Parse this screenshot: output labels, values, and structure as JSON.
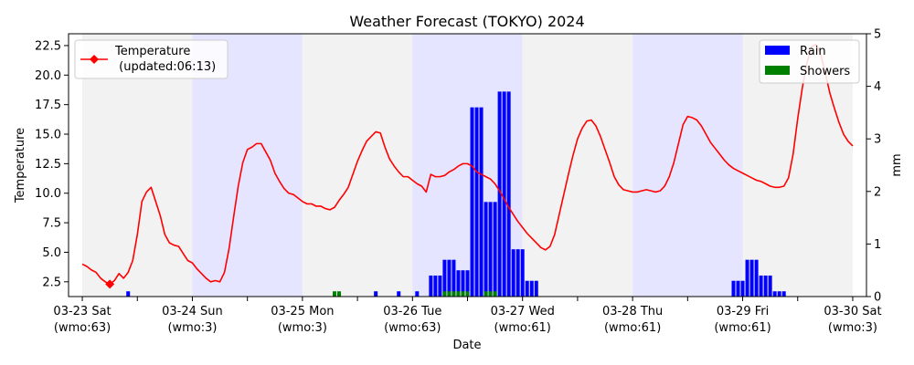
{
  "chart_data": {
    "type": "bar+line",
    "title": "Weather Forecast (TOKYO) 2024",
    "xlabel": "Date",
    "ylabel_left": "Temperature",
    "ylabel_right": "mm",
    "ylim_left": [
      1.25,
      23.5
    ],
    "ylim_right": [
      0,
      5
    ],
    "yticks_left": [
      "2.5",
      "5.0",
      "7.5",
      "10.0",
      "12.5",
      "15.0",
      "17.5",
      "20.0",
      "22.5"
    ],
    "yticks_right": [
      "0",
      "1",
      "2",
      "3",
      "4",
      "5"
    ],
    "xlim_hours": [
      -3,
      171
    ],
    "x_tick_labels": [
      {
        "hour": 0,
        "date": "03-23 Sat",
        "wmo": "(wmo:63)"
      },
      {
        "hour": 24,
        "date": "03-24 Sun",
        "wmo": "(wmo:3)"
      },
      {
        "hour": 48,
        "date": "03-25 Mon",
        "wmo": "(wmo:3)"
      },
      {
        "hour": 72,
        "date": "03-26 Tue",
        "wmo": "(wmo:63)"
      },
      {
        "hour": 96,
        "date": "03-27 Wed",
        "wmo": "(wmo:61)"
      },
      {
        "hour": 120,
        "date": "03-28 Thu",
        "wmo": "(wmo:61)"
      },
      {
        "hour": 144,
        "date": "03-29 Fri",
        "wmo": "(wmo:61)"
      },
      {
        "hour": 168,
        "date": "03-30 Sat",
        "wmo": "(wmo:3)"
      }
    ],
    "minor_tick_hours": [
      12,
      36,
      60,
      84,
      108,
      132,
      156
    ],
    "day_bands": [
      {
        "start": 0,
        "end": 24,
        "color": "#f2f2f2"
      },
      {
        "start": 24,
        "end": 48,
        "color": "#e5e5ff"
      },
      {
        "start": 48,
        "end": 72,
        "color": "#f2f2f2"
      },
      {
        "start": 72,
        "end": 96,
        "color": "#e5e5ff"
      },
      {
        "start": 96,
        "end": 120,
        "color": "#f2f2f2"
      },
      {
        "start": 120,
        "end": 144,
        "color": "#e5e5ff"
      },
      {
        "start": 144,
        "end": 168,
        "color": "#f2f2f2"
      }
    ],
    "temperature": {
      "name": "Temperature\n (updated:06:13)",
      "color": "#ff0000",
      "marker_hour": 6,
      "marker_value": 2.3,
      "points": [
        [
          0,
          4.0
        ],
        [
          1,
          3.8
        ],
        [
          2,
          3.5
        ],
        [
          3,
          3.3
        ],
        [
          4,
          2.8
        ],
        [
          5,
          2.5
        ],
        [
          6,
          2.3
        ],
        [
          7,
          2.6
        ],
        [
          8,
          3.2
        ],
        [
          9,
          2.8
        ],
        [
          10,
          3.3
        ],
        [
          11,
          4.3
        ],
        [
          12,
          6.5
        ],
        [
          13,
          9.3
        ],
        [
          14,
          10.1
        ],
        [
          15,
          10.5
        ],
        [
          16,
          9.3
        ],
        [
          17,
          8.1
        ],
        [
          18,
          6.5
        ],
        [
          19,
          5.8
        ],
        [
          20,
          5.6
        ],
        [
          21,
          5.5
        ],
        [
          22,
          4.9
        ],
        [
          23,
          4.3
        ],
        [
          24,
          4.1
        ],
        [
          25,
          3.6
        ],
        [
          26,
          3.2
        ],
        [
          27,
          2.8
        ],
        [
          28,
          2.5
        ],
        [
          29,
          2.6
        ],
        [
          30,
          2.5
        ],
        [
          31,
          3.3
        ],
        [
          32,
          5.3
        ],
        [
          33,
          8.0
        ],
        [
          34,
          10.6
        ],
        [
          35,
          12.6
        ],
        [
          36,
          13.7
        ],
        [
          37,
          13.9
        ],
        [
          38,
          14.2
        ],
        [
          39,
          14.2
        ],
        [
          40,
          13.5
        ],
        [
          41,
          12.8
        ],
        [
          42,
          11.7
        ],
        [
          43,
          11.0
        ],
        [
          44,
          10.4
        ],
        [
          45,
          10.0
        ],
        [
          46,
          9.9
        ],
        [
          47,
          9.6
        ],
        [
          48,
          9.3
        ],
        [
          49,
          9.1
        ],
        [
          50,
          9.1
        ],
        [
          51,
          8.9
        ],
        [
          52,
          8.9
        ],
        [
          53,
          8.7
        ],
        [
          54,
          8.6
        ],
        [
          55,
          8.8
        ],
        [
          56,
          9.4
        ],
        [
          57,
          9.9
        ],
        [
          58,
          10.5
        ],
        [
          59,
          11.6
        ],
        [
          60,
          12.7
        ],
        [
          61,
          13.6
        ],
        [
          62,
          14.4
        ],
        [
          63,
          14.8
        ],
        [
          64,
          15.2
        ],
        [
          65,
          15.1
        ],
        [
          66,
          13.9
        ],
        [
          67,
          12.9
        ],
        [
          68,
          12.3
        ],
        [
          69,
          11.8
        ],
        [
          70,
          11.4
        ],
        [
          71,
          11.4
        ],
        [
          72,
          11.1
        ],
        [
          73,
          10.8
        ],
        [
          74,
          10.6
        ],
        [
          75,
          10.1
        ],
        [
          76,
          11.6
        ],
        [
          77,
          11.4
        ],
        [
          78,
          11.4
        ],
        [
          79,
          11.5
        ],
        [
          80,
          11.8
        ],
        [
          81,
          12.0
        ],
        [
          82,
          12.3
        ],
        [
          83,
          12.5
        ],
        [
          84,
          12.5
        ],
        [
          85,
          12.3
        ],
        [
          86,
          11.8
        ],
        [
          87,
          11.6
        ],
        [
          88,
          11.4
        ],
        [
          89,
          11.2
        ],
        [
          90,
          10.8
        ],
        [
          91,
          10.2
        ],
        [
          92,
          9.5
        ],
        [
          93,
          8.8
        ],
        [
          94,
          8.2
        ],
        [
          95,
          7.6
        ],
        [
          96,
          7.1
        ],
        [
          97,
          6.6
        ],
        [
          98,
          6.2
        ],
        [
          99,
          5.8
        ],
        [
          100,
          5.4
        ],
        [
          101,
          5.2
        ],
        [
          102,
          5.5
        ],
        [
          103,
          6.5
        ],
        [
          104,
          8.2
        ],
        [
          105,
          9.9
        ],
        [
          106,
          11.6
        ],
        [
          107,
          13.2
        ],
        [
          108,
          14.6
        ],
        [
          109,
          15.5
        ],
        [
          110,
          16.1
        ],
        [
          111,
          16.2
        ],
        [
          112,
          15.7
        ],
        [
          113,
          14.8
        ],
        [
          114,
          13.7
        ],
        [
          115,
          12.6
        ],
        [
          116,
          11.4
        ],
        [
          117,
          10.7
        ],
        [
          118,
          10.3
        ],
        [
          119,
          10.2
        ],
        [
          120,
          10.1
        ],
        [
          121,
          10.1
        ],
        [
          122,
          10.2
        ],
        [
          123,
          10.3
        ],
        [
          124,
          10.2
        ],
        [
          125,
          10.1
        ],
        [
          126,
          10.2
        ],
        [
          127,
          10.6
        ],
        [
          128,
          11.4
        ],
        [
          129,
          12.6
        ],
        [
          130,
          14.2
        ],
        [
          131,
          15.8
        ],
        [
          132,
          16.5
        ],
        [
          133,
          16.4
        ],
        [
          134,
          16.2
        ],
        [
          135,
          15.7
        ],
        [
          136,
          15.0
        ],
        [
          137,
          14.3
        ],
        [
          138,
          13.8
        ],
        [
          139,
          13.3
        ],
        [
          140,
          12.8
        ],
        [
          141,
          12.4
        ],
        [
          142,
          12.1
        ],
        [
          143,
          11.9
        ],
        [
          144,
          11.7
        ],
        [
          145,
          11.5
        ],
        [
          146,
          11.3
        ],
        [
          147,
          11.1
        ],
        [
          148,
          11.0
        ],
        [
          149,
          10.8
        ],
        [
          150,
          10.6
        ],
        [
          151,
          10.5
        ],
        [
          152,
          10.5
        ],
        [
          153,
          10.6
        ],
        [
          154,
          11.3
        ],
        [
          155,
          13.3
        ],
        [
          156,
          16.3
        ],
        [
          157,
          18.9
        ],
        [
          158,
          21.0
        ],
        [
          159,
          22.4
        ],
        [
          160,
          22.6
        ],
        [
          161,
          21.8
        ],
        [
          162,
          20.2
        ],
        [
          163,
          18.5
        ],
        [
          164,
          17.2
        ],
        [
          165,
          16.0
        ],
        [
          166,
          15.0
        ],
        [
          167,
          14.4
        ],
        [
          168,
          14.0
        ]
      ]
    },
    "rain": {
      "name": "Rain",
      "color": "#0000ff",
      "bars": [
        [
          10,
          0.1
        ],
        [
          64,
          0.1
        ],
        [
          69,
          0.1
        ],
        [
          73,
          0.1
        ],
        [
          76,
          0.4
        ],
        [
          77,
          0.4
        ],
        [
          78,
          0.4
        ],
        [
          79,
          0.7
        ],
        [
          80,
          0.7
        ],
        [
          81,
          0.7
        ],
        [
          82,
          0.5
        ],
        [
          83,
          0.5
        ],
        [
          84,
          0.5
        ],
        [
          85,
          3.6
        ],
        [
          86,
          3.6
        ],
        [
          87,
          3.6
        ],
        [
          88,
          1.8
        ],
        [
          89,
          1.8
        ],
        [
          90,
          1.8
        ],
        [
          91,
          3.9
        ],
        [
          92,
          3.9
        ],
        [
          93,
          3.9
        ],
        [
          94,
          0.9
        ],
        [
          95,
          0.9
        ],
        [
          96,
          0.9
        ],
        [
          97,
          0.3
        ],
        [
          98,
          0.3
        ],
        [
          99,
          0.3
        ],
        [
          142,
          0.3
        ],
        [
          143,
          0.3
        ],
        [
          144,
          0.3
        ],
        [
          145,
          0.7
        ],
        [
          146,
          0.7
        ],
        [
          147,
          0.7
        ],
        [
          148,
          0.4
        ],
        [
          149,
          0.4
        ],
        [
          150,
          0.4
        ],
        [
          151,
          0.1
        ],
        [
          152,
          0.1
        ],
        [
          153,
          0.1
        ]
      ]
    },
    "showers": {
      "name": "Showers",
      "color": "#008000",
      "bars": [
        [
          55,
          0.1
        ],
        [
          56,
          0.1
        ],
        [
          79,
          0.1
        ],
        [
          80,
          0.1
        ],
        [
          81,
          0.1
        ],
        [
          82,
          0.1
        ],
        [
          83,
          0.1
        ],
        [
          84,
          0.1
        ],
        [
          88,
          0.1
        ],
        [
          89,
          0.1
        ],
        [
          90,
          0.1
        ]
      ]
    },
    "legend_left_position": "top-left",
    "legend_right_position": "top-right",
    "grid": false
  }
}
